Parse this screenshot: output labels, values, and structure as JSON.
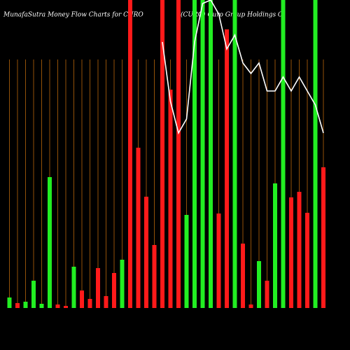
{
  "chart_data": {
    "type": "bar",
    "title": "MunafaSutra  Money Flow  Charts for CURO",
    "subtitle": "(CURO) Curo Group Holdings C",
    "ylim": [
      0,
      440
    ],
    "values": [
      15,
      7,
      9,
      39,
      6,
      187,
      5,
      3,
      59,
      25,
      13,
      57,
      17,
      50,
      69,
      440,
      229,
      159,
      90,
      440,
      312,
      440,
      133,
      440,
      440,
      440,
      135,
      398,
      440,
      92,
      5,
      67,
      39,
      178,
      440,
      158,
      166,
      136,
      440,
      201
    ],
    "colors": [
      "#22ee22",
      "#ff1a1a",
      "#22ee22",
      "#22ee22",
      "#22ee22",
      "#22ee22",
      "#ff1a1a",
      "#ff1a1a",
      "#22ee22",
      "#ff1a1a",
      "#ff1a1a",
      "#ff1a1a",
      "#ff1a1a",
      "#ff1a1a",
      "#22ee22",
      "#ff1a1a",
      "#ff1a1a",
      "#ff1a1a",
      "#ff1a1a",
      "#ff1a1a",
      "#ff1a1a",
      "#ff1a1a",
      "#22ee22",
      "#22ee22",
      "#22ee22",
      "#22ee22",
      "#ff1a1a",
      "#ff1a1a",
      "#22ee22",
      "#ff1a1a",
      "#ff1a1a",
      "#22ee22",
      "#ff1a1a",
      "#22ee22",
      "#22ee22",
      "#ff1a1a",
      "#ff1a1a",
      "#ff1a1a",
      "#22ee22",
      "#ff1a1a"
    ],
    "line": {
      "color": "#ffffff",
      "values": [
        null,
        null,
        null,
        null,
        null,
        null,
        null,
        null,
        null,
        null,
        null,
        null,
        null,
        null,
        null,
        null,
        null,
        null,
        null,
        380,
        295,
        250,
        270,
        380,
        435,
        440,
        420,
        370,
        390,
        350,
        335,
        350,
        310,
        310,
        330,
        310,
        330,
        310,
        290,
        250
      ]
    }
  }
}
